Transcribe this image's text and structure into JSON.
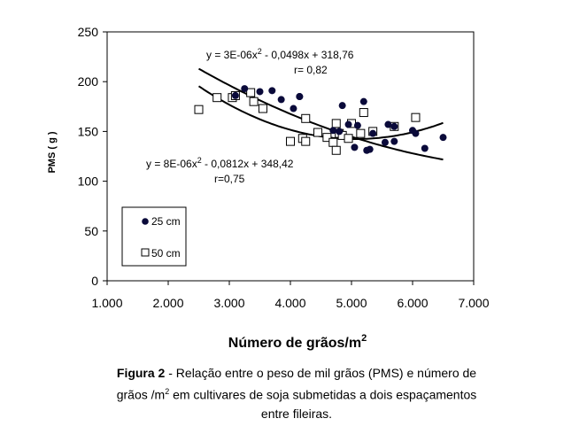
{
  "chart_data": {
    "type": "scatter",
    "title": "",
    "xlabel": "Número de grãos/m",
    "xlabel_sup": "2",
    "ylabel": "PMS ( g )",
    "xlim": [
      1000,
      7000
    ],
    "ylim": [
      0,
      250
    ],
    "x_ticks": [
      1000,
      2000,
      3000,
      4000,
      5000,
      6000,
      7000
    ],
    "x_tick_labels": [
      "1.000",
      "2.000",
      "3.000",
      "4.000",
      "5.000",
      "6.000",
      "7.000"
    ],
    "y_ticks": [
      0,
      50,
      100,
      150,
      200,
      250
    ],
    "y_tick_labels": [
      "0",
      "50",
      "100",
      "150",
      "200",
      "250"
    ],
    "grid": false,
    "legend_position": "bottom-left",
    "series": [
      {
        "name": "25 cm",
        "marker": "filled-circle",
        "color": "#0a0a3a",
        "points": [
          [
            3100,
            186
          ],
          [
            3250,
            193
          ],
          [
            3500,
            190
          ],
          [
            3700,
            191
          ],
          [
            3850,
            182
          ],
          [
            4050,
            173
          ],
          [
            4150,
            185
          ],
          [
            4150,
            185
          ],
          [
            4700,
            151
          ],
          [
            4800,
            150
          ],
          [
            4850,
            176
          ],
          [
            4950,
            157
          ],
          [
            5050,
            134
          ],
          [
            5100,
            156
          ],
          [
            5200,
            180
          ],
          [
            5250,
            131
          ],
          [
            5300,
            132
          ],
          [
            5350,
            148
          ],
          [
            5550,
            139
          ],
          [
            5600,
            157
          ],
          [
            5700,
            140
          ],
          [
            5700,
            155
          ],
          [
            6000,
            151
          ],
          [
            6050,
            148
          ],
          [
            6200,
            133
          ],
          [
            6500,
            144
          ]
        ]
      },
      {
        "name": "50 cm",
        "marker": "open-square",
        "color": "#000000",
        "points": [
          [
            2500,
            172
          ],
          [
            2800,
            184
          ],
          [
            3050,
            184
          ],
          [
            3100,
            186
          ],
          [
            3350,
            189
          ],
          [
            3400,
            180
          ],
          [
            3550,
            173
          ],
          [
            4000,
            140
          ],
          [
            4200,
            143
          ],
          [
            4250,
            163
          ],
          [
            4250,
            140
          ],
          [
            4450,
            149
          ],
          [
            4600,
            144
          ],
          [
            4700,
            139
          ],
          [
            4750,
            131
          ],
          [
            4750,
            158
          ],
          [
            4800,
            148
          ],
          [
            4850,
            146
          ],
          [
            4950,
            143
          ],
          [
            5000,
            158
          ],
          [
            5150,
            148
          ],
          [
            5200,
            169
          ],
          [
            5350,
            150
          ],
          [
            5700,
            155
          ],
          [
            6050,
            164
          ]
        ]
      }
    ],
    "trendlines": [
      {
        "series": "25 cm",
        "coefficients": [
          3e-06,
          -0.0498,
          318.76
        ],
        "x_range": [
          2500,
          6500
        ]
      },
      {
        "series": "50 cm",
        "coefficients": [
          8e-06,
          -0.0812,
          348.42
        ],
        "x_range": [
          2500,
          6500
        ]
      }
    ],
    "annotations": {
      "eq1_pre": "y = 3E-06x",
      "eq1_sup": "2",
      "eq1_post": " - 0,0498x + 318,76",
      "r1": "r= 0,82",
      "eq2_pre": "y = 8E-06x",
      "eq2_sup": "2",
      "eq2_post": " - 0,0812x + 348,42",
      "r2": "r=0,75"
    }
  },
  "caption": {
    "label": "Figura 2",
    "line1": " - Relação entre o peso de mil grãos (PMS) e número de",
    "line2_pre": "grãos /m",
    "line2_sup": "2",
    "line2_post": " em cultivares de soja submetidas a dois espaçamentos",
    "line3": "entre fileiras."
  }
}
